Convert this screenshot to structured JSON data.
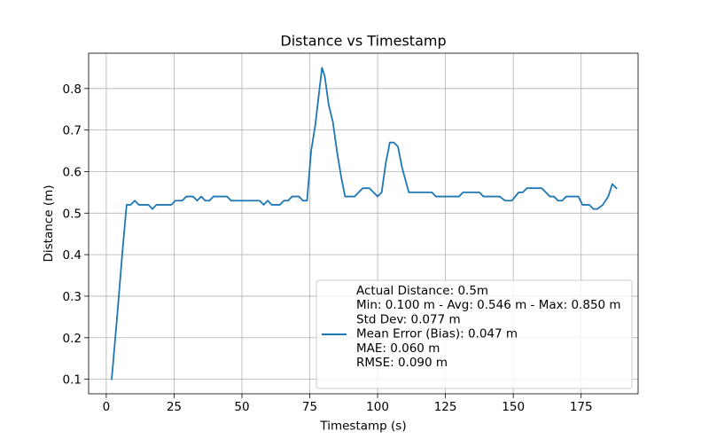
{
  "chart_data": {
    "type": "line",
    "title": "Distance vs Timestamp",
    "xlabel": "Timestamp (s)",
    "ylabel": "Distance (m)",
    "xlim": [
      -6.5,
      196
    ],
    "ylim": [
      0.065,
      0.885
    ],
    "xticks": [
      0,
      25,
      50,
      75,
      100,
      125,
      150,
      175
    ],
    "yticks": [
      0.1,
      0.2,
      0.3,
      0.4,
      0.5,
      0.6,
      0.7,
      0.8
    ],
    "xtick_labels": [
      "0",
      "25",
      "50",
      "75",
      "100",
      "125",
      "150",
      "175"
    ],
    "ytick_labels": [
      "0.1",
      "0.2",
      "0.3",
      "0.4",
      "0.5",
      "0.6",
      "0.7",
      "0.8"
    ],
    "grid": true,
    "legend_position": "lower-right",
    "series": [
      {
        "name": "Actual Distance: 0.5m\nMin: 0.100 m - Avg: 0.546 m - Max: 0.850 m\nStd Dev: 0.077 m\nMean Error (Bias): 0.047 m\nMAE: 0.060 m\nRMSE: 0.090 m",
        "color": "#1f77b4",
        "points": [
          [
            2,
            0.1
          ],
          [
            4,
            0.25
          ],
          [
            6,
            0.41
          ],
          [
            7.5,
            0.52
          ],
          [
            9,
            0.52
          ],
          [
            10.5,
            0.53
          ],
          [
            12,
            0.52
          ],
          [
            14,
            0.52
          ],
          [
            15.5,
            0.52
          ],
          [
            17,
            0.51
          ],
          [
            18.5,
            0.52
          ],
          [
            20,
            0.52
          ],
          [
            22,
            0.52
          ],
          [
            24,
            0.52
          ],
          [
            25.5,
            0.53
          ],
          [
            28,
            0.53
          ],
          [
            29.5,
            0.54
          ],
          [
            32,
            0.54
          ],
          [
            33.5,
            0.53
          ],
          [
            35,
            0.54
          ],
          [
            36.5,
            0.53
          ],
          [
            38,
            0.53
          ],
          [
            39.5,
            0.54
          ],
          [
            42,
            0.54
          ],
          [
            44.5,
            0.54
          ],
          [
            46,
            0.53
          ],
          [
            50,
            0.53
          ],
          [
            54,
            0.53
          ],
          [
            56.5,
            0.53
          ],
          [
            58,
            0.52
          ],
          [
            59.5,
            0.53
          ],
          [
            61,
            0.52
          ],
          [
            64,
            0.52
          ],
          [
            65.5,
            0.53
          ],
          [
            67,
            0.53
          ],
          [
            68.5,
            0.54
          ],
          [
            71,
            0.54
          ],
          [
            72.5,
            0.53
          ],
          [
            74,
            0.53
          ],
          [
            75.5,
            0.65
          ],
          [
            77,
            0.71
          ],
          [
            79.5,
            0.85
          ],
          [
            80.5,
            0.83
          ],
          [
            82,
            0.76
          ],
          [
            83.5,
            0.72
          ],
          [
            85,
            0.65
          ],
          [
            86.5,
            0.59
          ],
          [
            88,
            0.54
          ],
          [
            90,
            0.54
          ],
          [
            91.5,
            0.54
          ],
          [
            93,
            0.55
          ],
          [
            94.5,
            0.56
          ],
          [
            97,
            0.56
          ],
          [
            98.5,
            0.55
          ],
          [
            100,
            0.54
          ],
          [
            101.5,
            0.55
          ],
          [
            103,
            0.62
          ],
          [
            104.5,
            0.67
          ],
          [
            106,
            0.67
          ],
          [
            107.5,
            0.66
          ],
          [
            109,
            0.61
          ],
          [
            111.5,
            0.55
          ],
          [
            115,
            0.55
          ],
          [
            120,
            0.55
          ],
          [
            121.5,
            0.54
          ],
          [
            126,
            0.54
          ],
          [
            130,
            0.54
          ],
          [
            131.5,
            0.55
          ],
          [
            135,
            0.55
          ],
          [
            137.5,
            0.55
          ],
          [
            139,
            0.54
          ],
          [
            145,
            0.54
          ],
          [
            147,
            0.53
          ],
          [
            149.5,
            0.53
          ],
          [
            152,
            0.55
          ],
          [
            153.5,
            0.55
          ],
          [
            155,
            0.56
          ],
          [
            158,
            0.56
          ],
          [
            160.5,
            0.56
          ],
          [
            162,
            0.55
          ],
          [
            163.5,
            0.54
          ],
          [
            165,
            0.54
          ],
          [
            166.5,
            0.53
          ],
          [
            168,
            0.53
          ],
          [
            169.5,
            0.54
          ],
          [
            174,
            0.54
          ],
          [
            175.5,
            0.52
          ],
          [
            178,
            0.52
          ],
          [
            179.5,
            0.51
          ],
          [
            181,
            0.51
          ],
          [
            183,
            0.52
          ],
          [
            185,
            0.54
          ],
          [
            186.5,
            0.57
          ],
          [
            188,
            0.56
          ]
        ]
      }
    ]
  }
}
